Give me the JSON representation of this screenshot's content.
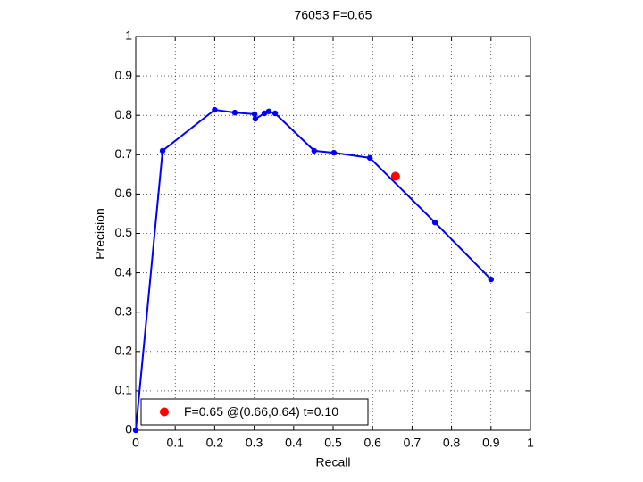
{
  "chart_data": {
    "type": "line",
    "title": "76053 F=0.65",
    "xlabel": "Recall",
    "ylabel": "Precision",
    "x": [
      0,
      0.068,
      0.2,
      0.251,
      0.301,
      0.303,
      0.326,
      0.337,
      0.353,
      0.452,
      0.502,
      0.593,
      0.758,
      0.9
    ],
    "values": [
      0,
      0.71,
      0.814,
      0.807,
      0.803,
      0.791,
      0.805,
      0.81,
      0.805,
      0.71,
      0.705,
      0.692,
      0.528,
      0.383
    ],
    "color": "#0000ff",
    "highlight": {
      "x": 0.658,
      "y": 0.645,
      "color": "#ff0000",
      "label": "F=0.65 @(0.66,0.64) t=0.10"
    },
    "legend": "lower left",
    "xlim": [
      0,
      1
    ],
    "ylim": [
      0,
      1
    ],
    "xticks": [
      0,
      0.1,
      0.2,
      0.3,
      0.4,
      0.5,
      0.6,
      0.7,
      0.8,
      0.9,
      1
    ],
    "yticks": [
      0,
      0.1,
      0.2,
      0.3,
      0.4,
      0.5,
      0.6,
      0.7,
      0.8,
      0.9,
      1
    ],
    "grid": true
  }
}
